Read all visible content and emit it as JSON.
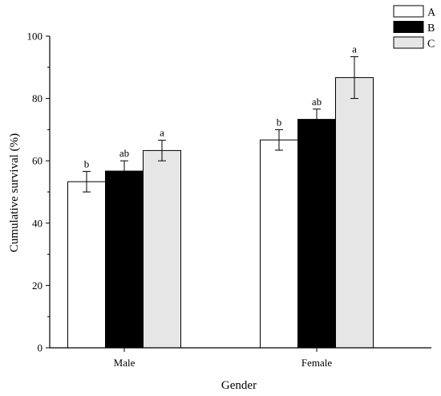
{
  "chart_data": {
    "type": "bar",
    "title": "",
    "xlabel": "Gender",
    "ylabel": "Cumulative survival  (%)",
    "categories": [
      "Male",
      "Female"
    ],
    "ylim": [
      0,
      100
    ],
    "yticks": [
      0,
      20,
      40,
      60,
      80,
      100
    ],
    "grid": false,
    "legend_position": "top-right",
    "series": [
      {
        "name": "A",
        "color": "#ffffff",
        "values": [
          53.3,
          66.7
        ],
        "errors": [
          3.3,
          3.3
        ],
        "labels": [
          "b",
          "b"
        ]
      },
      {
        "name": "B",
        "color": "#000000",
        "values": [
          56.7,
          73.3
        ],
        "errors": [
          3.3,
          3.3
        ],
        "labels": [
          "ab",
          "ab"
        ]
      },
      {
        "name": "C",
        "color": "#e6e6e6",
        "values": [
          63.3,
          86.7
        ],
        "errors": [
          3.3,
          6.7
        ],
        "labels": [
          "a",
          "a"
        ]
      }
    ]
  }
}
